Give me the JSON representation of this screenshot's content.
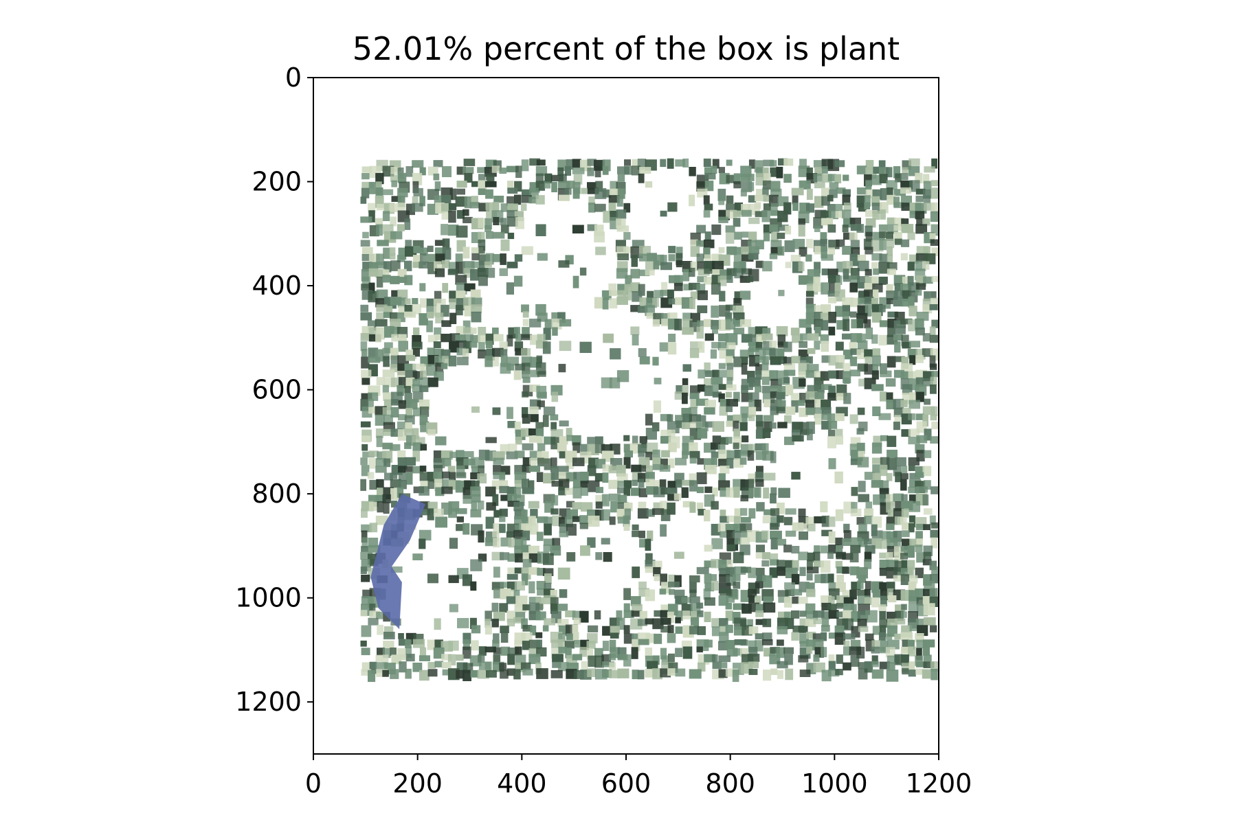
{
  "chart_data": {
    "type": "image",
    "title": "52.01% percent of the box is plant",
    "plant_percent": 52.01,
    "xlim": [
      0,
      1200
    ],
    "ylim": [
      1300,
      0
    ],
    "y_inverted": true,
    "x_ticks": [
      0,
      200,
      400,
      600,
      800,
      1000,
      1200
    ],
    "y_ticks": [
      0,
      200,
      400,
      600,
      800,
      1000,
      1200
    ],
    "grid": false,
    "image_content": "masked-plant-cover",
    "plant_region": {
      "x": [
        90,
        1185
      ],
      "y": [
        155,
        1140
      ]
    },
    "blue_patch_region": {
      "x": [
        110,
        215
      ],
      "y": [
        800,
        1060
      ]
    },
    "colors": {
      "background": "#ffffff",
      "plant_dark": "#3f5a46",
      "plant_mid": "#6f8f78",
      "plant_light": "#a7bba0",
      "plant_pale": "#cfd9bf",
      "blue_patch": "#5a6aa8",
      "axis": "#000000"
    }
  }
}
